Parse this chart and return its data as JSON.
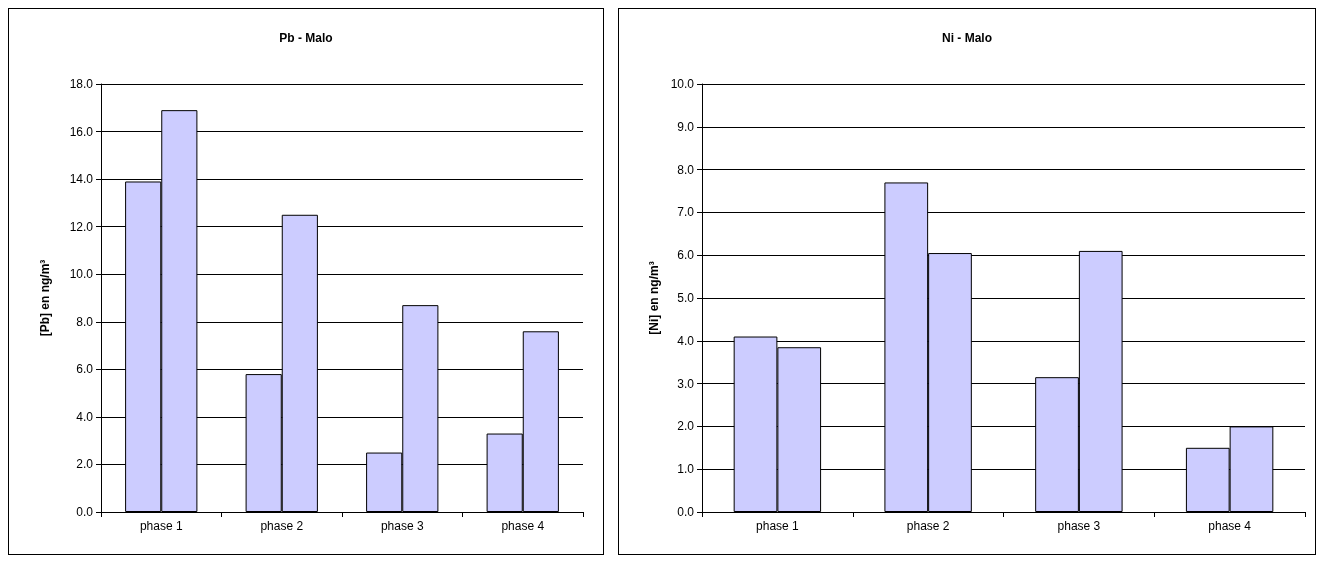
{
  "chart_data": [
    {
      "type": "bar",
      "title": "Pb - Malo",
      "ylabel": "[Pb] en ng/m³",
      "categories": [
        "phase 1",
        "phase 2",
        "phase 3",
        "phase 4"
      ],
      "series": [
        {
          "color": "#ccccff",
          "values": [
            13.9,
            5.8,
            2.5,
            3.3
          ]
        },
        {
          "color": "#ccccff",
          "values": [
            16.9,
            12.5,
            8.7,
            7.6
          ]
        }
      ],
      "ylim": [
        0,
        18
      ],
      "yticks": [
        {
          "value": 0,
          "label": "0.0"
        },
        {
          "value": 2,
          "label": "2.0"
        },
        {
          "value": 4,
          "label": "4.0"
        },
        {
          "value": 6,
          "label": "6.0"
        },
        {
          "value": 8,
          "label": "8.0"
        },
        {
          "value": 10,
          "label": "10.0"
        },
        {
          "value": 12,
          "label": "12.0"
        },
        {
          "value": 14,
          "label": "14.0"
        },
        {
          "value": 16,
          "label": "16.0"
        },
        {
          "value": 18,
          "label": "18.0"
        }
      ],
      "grid": "y"
    },
    {
      "type": "bar",
      "title": "Ni - Malo",
      "ylabel": "[Ni] en ng/m³",
      "categories": [
        "phase 1",
        "phase 2",
        "phase 3",
        "phase 4"
      ],
      "series": [
        {
          "color": "#ccccff",
          "values": [
            4.1,
            7.7,
            3.15,
            1.5
          ]
        },
        {
          "color": "#ccccff",
          "values": [
            3.85,
            6.05,
            6.1,
            2.0
          ]
        }
      ],
      "ylim": [
        0,
        10
      ],
      "yticks": [
        {
          "value": 0,
          "label": "0.0"
        },
        {
          "value": 1,
          "label": "1.0"
        },
        {
          "value": 2,
          "label": "2.0"
        },
        {
          "value": 3,
          "label": "3.0"
        },
        {
          "value": 4,
          "label": "4.0"
        },
        {
          "value": 5,
          "label": "5.0"
        },
        {
          "value": 6,
          "label": "6.0"
        },
        {
          "value": 7,
          "label": "7.0"
        },
        {
          "value": 8,
          "label": "8.0"
        },
        {
          "value": 9,
          "label": "9.0"
        },
        {
          "value": 10,
          "label": "10.0"
        }
      ],
      "grid": "y"
    }
  ]
}
